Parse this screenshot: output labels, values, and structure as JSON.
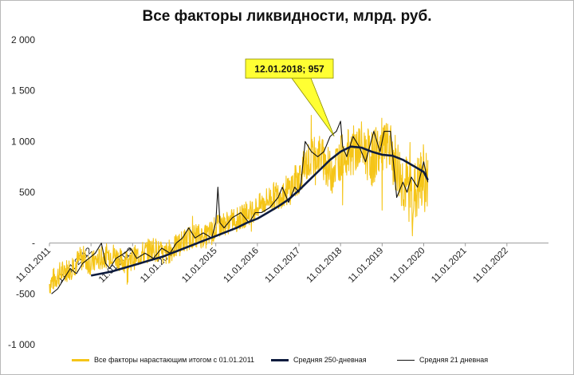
{
  "chart_data": {
    "type": "line",
    "title": "Все факторы ликвидности, млрд. руб.",
    "ylim": [
      -1000,
      2000
    ],
    "yticks": [
      {
        "value": 2000,
        "label": "2 000"
      },
      {
        "value": 1500,
        "label": "1 500"
      },
      {
        "value": 1000,
        "label": "1 000"
      },
      {
        "value": 500,
        "label": "500"
      },
      {
        "value": 0,
        "label": "-"
      },
      {
        "value": -500,
        "label": "-500"
      },
      {
        "value": -1000,
        "label": "-1 000"
      }
    ],
    "x_categories": [
      "11.01.2011",
      "11.01.2012",
      "11.01.2013",
      "11.01.2014",
      "11.01.2015",
      "11.01.2016",
      "11.01.2017",
      "11.01.2018",
      "11.01.2019",
      "11.01.2020",
      "11.01.2021",
      "11.01.2022"
    ],
    "xlim": [
      2011.0,
      2023.0
    ],
    "grid": false,
    "legend_position": "bottom",
    "annotation": {
      "text": "12.01.2018;  957",
      "x": 2018.0,
      "y": 957
    },
    "series": [
      {
        "name": "Все факторы нарастающим итогом с 01.01.2011",
        "color": "#f5c518",
        "style": "volatile",
        "x": [
          2011.0,
          2011.25,
          2011.5,
          2011.75,
          2012.0,
          2012.25,
          2012.5,
          2012.75,
          2013.0,
          2013.25,
          2013.5,
          2013.75,
          2014.0,
          2014.25,
          2014.5,
          2014.75,
          2015.0,
          2015.25,
          2015.5,
          2015.75,
          2016.0,
          2016.25,
          2016.5,
          2016.75,
          2017.0,
          2017.25,
          2017.5,
          2017.75,
          2018.0,
          2018.25,
          2018.5,
          2018.75,
          2019.0,
          2019.25,
          2019.5,
          2019.75,
          2020.0,
          2020.1
        ],
        "y": [
          -400,
          -300,
          -250,
          -150,
          -200,
          -150,
          -100,
          -180,
          -150,
          -100,
          -50,
          -120,
          -50,
          30,
          80,
          60,
          150,
          200,
          230,
          280,
          350,
          430,
          480,
          520,
          650,
          820,
          880,
          700,
          850,
          900,
          950,
          820,
          950,
          850,
          600,
          450,
          650,
          600
        ]
      },
      {
        "name": "Средняя 250-дневная",
        "color": "#0d1b3e",
        "width": 2.6,
        "x": [
          2012.0,
          2012.25,
          2012.5,
          2012.75,
          2013.0,
          2013.25,
          2013.5,
          2013.75,
          2014.0,
          2014.25,
          2014.5,
          2014.75,
          2015.0,
          2015.25,
          2015.5,
          2015.75,
          2016.0,
          2016.25,
          2016.5,
          2016.75,
          2017.0,
          2017.25,
          2017.5,
          2017.75,
          2018.0,
          2018.25,
          2018.5,
          2018.75,
          2019.0,
          2019.25,
          2019.5,
          2019.75,
          2020.0,
          2020.1
        ],
        "y": [
          -320,
          -300,
          -280,
          -250,
          -220,
          -190,
          -160,
          -130,
          -90,
          -50,
          -10,
          30,
          70,
          110,
          150,
          200,
          240,
          300,
          360,
          430,
          520,
          620,
          720,
          820,
          900,
          950,
          940,
          900,
          870,
          860,
          820,
          760,
          700,
          620
        ]
      },
      {
        "name": "Средняя 21 дневная",
        "color": "#111111",
        "width": 1.1,
        "x": [
          2011.05,
          2011.2,
          2011.35,
          2011.5,
          2011.65,
          2011.8,
          2011.95,
          2012.1,
          2012.25,
          2012.35,
          2012.45,
          2012.6,
          2012.8,
          2012.95,
          2013.1,
          2013.3,
          2013.5,
          2013.7,
          2013.9,
          2014.05,
          2014.2,
          2014.35,
          2014.5,
          2014.7,
          2014.9,
          2015.0,
          2015.05,
          2015.1,
          2015.2,
          2015.4,
          2015.6,
          2015.8,
          2015.95,
          2016.1,
          2016.3,
          2016.5,
          2016.6,
          2016.75,
          2016.9,
          2017.0,
          2017.05,
          2017.15,
          2017.3,
          2017.45,
          2017.6,
          2017.75,
          2017.9,
          2018.0,
          2018.05,
          2018.15,
          2018.3,
          2018.45,
          2018.6,
          2018.8,
          2018.95,
          2019.05,
          2019.2,
          2019.35,
          2019.5,
          2019.6,
          2019.7,
          2019.85,
          2020.0,
          2020.1
        ],
        "y": [
          -500,
          -450,
          -350,
          -250,
          -300,
          -200,
          -150,
          -100,
          0,
          -200,
          -250,
          -150,
          -100,
          -50,
          -150,
          -100,
          -150,
          -50,
          -100,
          0,
          50,
          150,
          50,
          100,
          50,
          200,
          550,
          200,
          150,
          250,
          300,
          200,
          300,
          300,
          350,
          450,
          550,
          400,
          550,
          500,
          600,
          1000,
          900,
          850,
          900,
          1050,
          1100,
          1200,
          950,
          850,
          1050,
          950,
          800,
          1100,
          900,
          1100,
          1100,
          450,
          600,
          500,
          650,
          550,
          800,
          600
        ]
      }
    ]
  }
}
